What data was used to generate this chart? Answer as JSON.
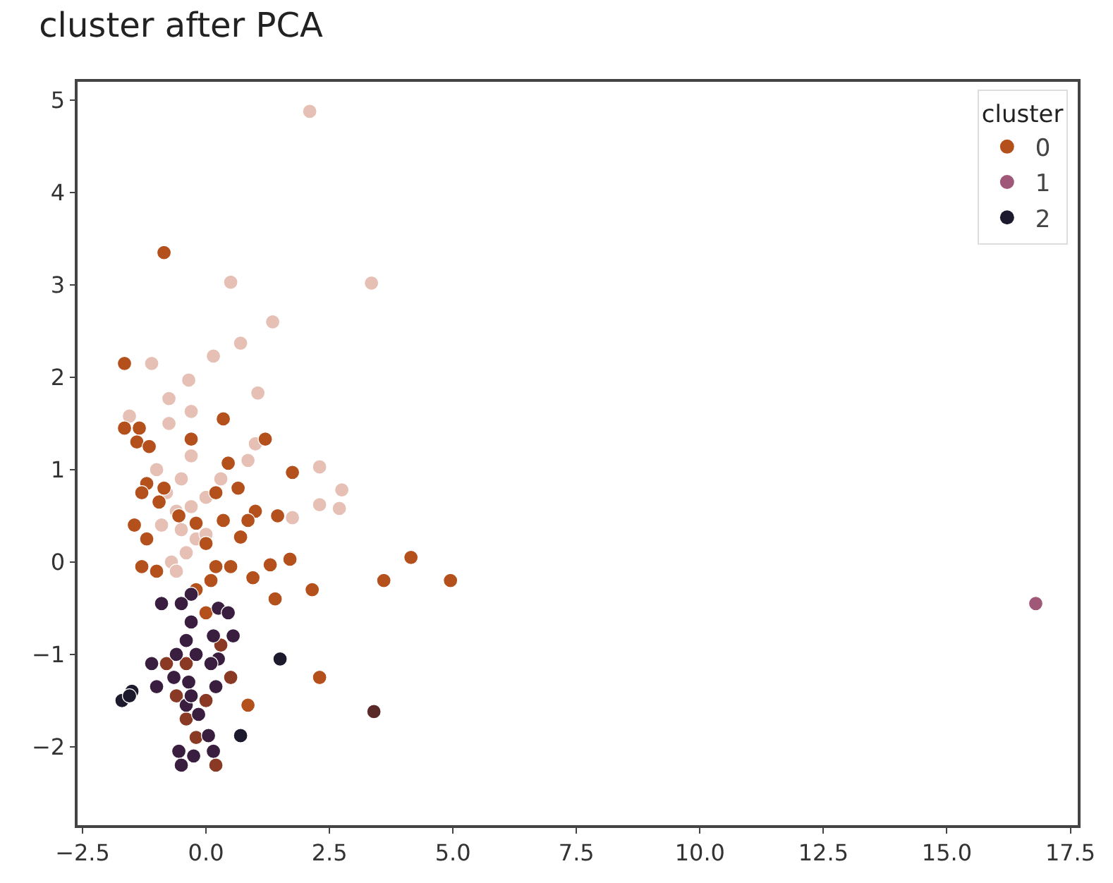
{
  "chart_data": {
    "type": "scatter",
    "title": "cluster after PCA",
    "legend_title": "cluster",
    "legend": "top right",
    "grid": false,
    "marker": "circle",
    "xlim": [
      -2.6,
      17.65
    ],
    "ylim": [
      -2.85,
      5.2
    ],
    "xticks": [
      {
        "value": -2.5,
        "label": "−2.5"
      },
      {
        "value": 0,
        "label": "0.0"
      },
      {
        "value": 2.5,
        "label": "2.5"
      },
      {
        "value": 5,
        "label": "5.0"
      },
      {
        "value": 7.5,
        "label": "7.5"
      },
      {
        "value": 10,
        "label": "10.0"
      },
      {
        "value": 12.5,
        "label": "12.5"
      },
      {
        "value": 15,
        "label": "15.0"
      },
      {
        "value": 17.5,
        "label": "17.5"
      }
    ],
    "yticks": [
      {
        "value": -2,
        "label": "−2"
      },
      {
        "value": -1,
        "label": "−1"
      },
      0,
      1,
      2,
      3,
      4,
      5
    ],
    "series": [
      {
        "name": "0",
        "color": "#b4501c",
        "x": [
          2.1,
          0.5,
          3.35,
          1.35,
          0.7,
          0.15,
          -1.1,
          1.05,
          -0.35,
          -0.75,
          -0.3,
          -0.75,
          -1.55,
          1.0,
          0.85,
          2.3,
          2.75,
          2.3,
          2.7,
          1.75,
          -0.3,
          -0.5,
          -0.8,
          -0.6,
          -0.3,
          0.0,
          -0.9,
          -0.5,
          -0.4,
          -0.7,
          -0.2,
          0.3,
          -1.0,
          -0.6,
          0.0,
          -0.85,
          -1.65,
          -1.65,
          -1.35,
          -1.4,
          -1.15,
          0.35,
          -0.3,
          1.2,
          0.45,
          1.75,
          0.65,
          -0.85,
          -1.2,
          0.2,
          -0.95,
          -1.3,
          1.0,
          0.85,
          1.45,
          0.35,
          -0.2,
          -1.45,
          0.0,
          0.7,
          -0.55,
          -1.2,
          1.7,
          4.15,
          3.6,
          4.95,
          1.3,
          0.5,
          0.95,
          -1.3,
          -1.0,
          0.2,
          0.1,
          2.15,
          1.4,
          -0.2,
          0.0,
          2.3,
          0.85,
          -0.4,
          -0.8,
          0.5,
          -0.4,
          0.0,
          -0.6,
          0.3,
          -0.2,
          0.2
        ],
        "values": [
          4.88,
          3.03,
          3.02,
          2.6,
          2.37,
          2.23,
          2.15,
          1.83,
          1.97,
          1.77,
          1.63,
          1.5,
          1.58,
          1.28,
          1.1,
          1.03,
          0.78,
          0.62,
          0.58,
          0.48,
          1.15,
          0.9,
          0.75,
          0.55,
          0.6,
          0.7,
          0.4,
          0.35,
          0.1,
          0.0,
          0.25,
          0.9,
          1.0,
          -0.1,
          0.3,
          3.35,
          2.15,
          1.45,
          1.45,
          1.3,
          1.25,
          1.55,
          1.33,
          1.33,
          1.07,
          0.97,
          0.8,
          0.8,
          0.85,
          0.75,
          0.65,
          0.75,
          0.55,
          0.45,
          0.5,
          0.45,
          0.42,
          0.4,
          0.2,
          0.27,
          0.5,
          0.25,
          0.03,
          0.05,
          -0.2,
          -0.2,
          -0.03,
          -0.05,
          -0.17,
          -0.05,
          -0.1,
          -0.05,
          -0.2,
          -0.3,
          -0.4,
          -0.3,
          -0.55,
          -1.25,
          -1.55,
          -1.1,
          -1.1,
          -1.25,
          -1.7,
          -1.5,
          -1.45,
          -0.9,
          -1.9,
          -2.2
        ],
        "colors": [
          "#e6c0b4",
          "#e6c0b4",
          "#e6c0b4",
          "#e6c0b4",
          "#e6c0b4",
          "#e6c0b4",
          "#e6c0b4",
          "#e6c0b4",
          "#e6c0b4",
          "#e6c0b4",
          "#e6c0b4",
          "#e6c0b4",
          "#e6c0b4",
          "#e6c0b4",
          "#e6c0b4",
          "#e6c0b4",
          "#e6c0b4",
          "#e6c0b4",
          "#e6c0b4",
          "#e6c0b4",
          "#e6c0b4",
          "#e6c0b4",
          "#e6c0b4",
          "#e6c0b4",
          "#e6c0b4",
          "#e6c0b4",
          "#e6c0b4",
          "#e6c0b4",
          "#e6c0b4",
          "#e6c0b4",
          "#e6c0b4",
          "#e6c0b4",
          "#e6c0b4",
          "#e6c0b4",
          "#e6c0b4",
          "#b4501c",
          "#b4501c",
          "#b4501c",
          "#b4501c",
          "#b4501c",
          "#b4501c",
          "#b4501c",
          "#b4501c",
          "#b4501c",
          "#b4501c",
          "#b4501c",
          "#b4501c",
          "#b4501c",
          "#b4501c",
          "#b4501c",
          "#b4501c",
          "#b4501c",
          "#b4501c",
          "#b4501c",
          "#b4501c",
          "#b4501c",
          "#b4501c",
          "#b4501c",
          "#b4501c",
          "#b4501c",
          "#b4501c",
          "#b4501c",
          "#b4501c",
          "#b4501c",
          "#b4501c",
          "#b4501c",
          "#b4501c",
          "#b4501c",
          "#b4501c",
          "#b4501c",
          "#b4501c",
          "#b4501c",
          "#b4501c",
          "#b4501c",
          "#b4501c",
          "#b4501c",
          "#b4501c",
          "#b4501c",
          "#b4501c",
          "#8a3a24",
          "#8a3a24",
          "#8a3a24",
          "#8a3a24",
          "#8a3a24",
          "#8a3a24",
          "#8a3a24",
          "#8a3a24",
          "#8a3a24"
        ]
      },
      {
        "name": "1",
        "color": "#a05878",
        "x": [
          16.8
        ],
        "values": [
          -0.45
        ]
      },
      {
        "name": "2",
        "color": "#1e1a2e",
        "x": [
          1.5,
          -0.3,
          -0.5,
          -0.9,
          -0.3,
          0.25,
          0.45,
          -0.4,
          0.15,
          0.55,
          -0.2,
          0.25,
          -0.6,
          -1.1,
          -0.35,
          0.2,
          -0.65,
          -1.5,
          -1.7,
          -1.55,
          -1.0,
          0.7,
          0.05,
          -0.55,
          0.15,
          -0.25,
          -0.5,
          -0.4,
          -0.15,
          0.1,
          -0.3,
          3.4
        ],
        "values": [
          -1.05,
          -0.35,
          -0.45,
          -0.45,
          -0.65,
          -0.5,
          -0.55,
          -0.85,
          -0.8,
          -0.8,
          -1.0,
          -1.05,
          -1.0,
          -1.1,
          -1.3,
          -1.35,
          -1.25,
          -1.4,
          -1.5,
          -1.45,
          -1.35,
          -1.88,
          -1.88,
          -2.05,
          -2.05,
          -2.1,
          -2.2,
          -1.55,
          -1.65,
          -1.1,
          -1.45,
          -1.62
        ],
        "colors": [
          "#1e1a2e",
          "#3a1e40",
          "#3a1e40",
          "#3a1e40",
          "#3a1e40",
          "#3a1e40",
          "#3a1e40",
          "#3a1e40",
          "#3a1e40",
          "#3a1e40",
          "#3a1e40",
          "#3a1e40",
          "#3a1e40",
          "#3a1e40",
          "#3a1e40",
          "#3a1e40",
          "#3a1e40",
          "#1e1a2e",
          "#1e1a2e",
          "#1e1a2e",
          "#3a1e40",
          "#1e1a2e",
          "#3a1e40",
          "#3a1e40",
          "#3a1e40",
          "#3a1e40",
          "#3a1e40",
          "#3a1e40",
          "#3a1e40",
          "#3a1e40",
          "#3a1e40",
          "#5a2a28"
        ]
      }
    ]
  }
}
